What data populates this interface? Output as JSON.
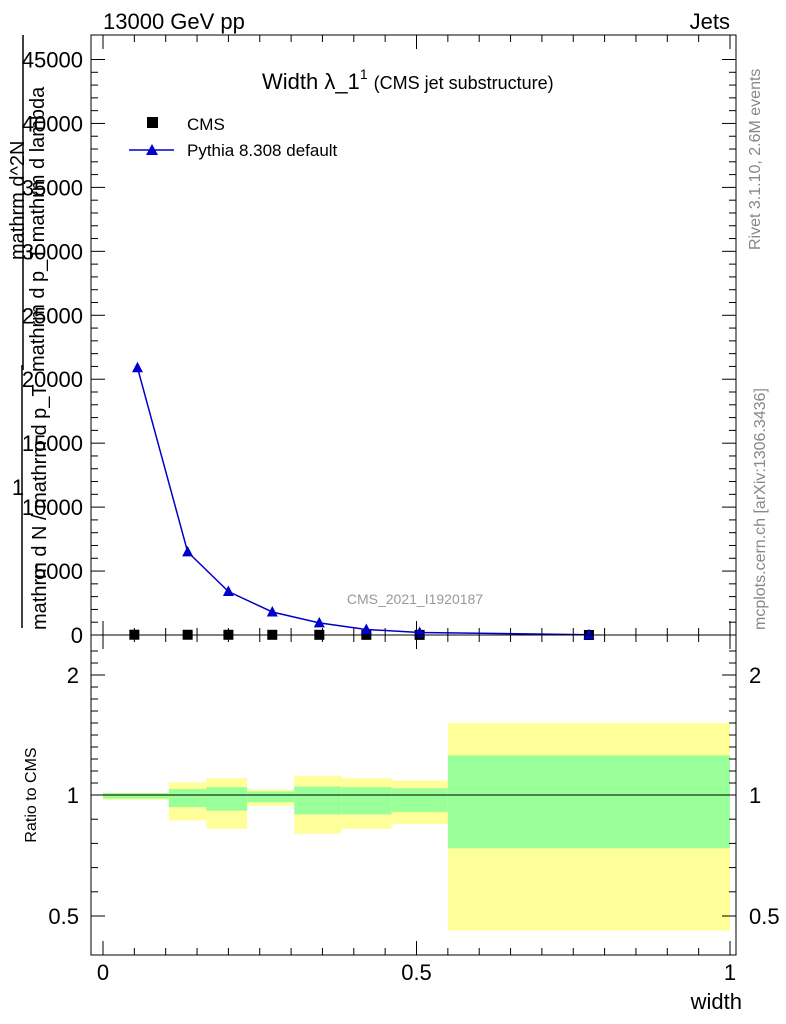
{
  "header": {
    "left": "13000 GeV pp",
    "right": "Jets"
  },
  "side_labels": {
    "rivet": "Rivet 3.1.10,  2.6M events",
    "mcplots": "mcplots.cern.ch [arXiv:1306.3436]"
  },
  "chart_data": [
    {
      "type": "line",
      "title_main": "Width λ_1",
      "title_sup": "1",
      "title_sub": "(CMS jet substructure)",
      "watermark": "CMS_2021_I1920187",
      "ylabel_lines": [
        "1",
        "mathrm d N / mathrm d p_T",
        "mathrm d^2N",
        "mathrm d p_T mathrm d lambda"
      ],
      "xlim": [
        0,
        1
      ],
      "ylim": [
        0,
        45000
      ],
      "y_ticks": [
        0,
        5000,
        10000,
        15000,
        20000,
        25000,
        30000,
        35000,
        40000,
        45000
      ],
      "legend": {
        "position": "top-left",
        "entries": [
          "CMS",
          "Pythia 8.308 default"
        ]
      },
      "series": [
        {
          "name": "CMS",
          "marker": "square",
          "color": "#000000",
          "x": [
            0.05,
            0.135,
            0.2,
            0.27,
            0.345,
            0.42,
            0.505,
            0.775
          ],
          "y": [
            22,
            20,
            18,
            16,
            15,
            12,
            10,
            2
          ]
        },
        {
          "name": "Pythia 8.308 default",
          "marker": "triangle",
          "color": "#0000cc",
          "x": [
            0.055,
            0.135,
            0.2,
            0.27,
            0.345,
            0.42,
            0.505,
            0.775
          ],
          "y": [
            20900,
            6500,
            3400,
            1800,
            950,
            430,
            200,
            20
          ]
        }
      ]
    },
    {
      "type": "area",
      "ylabel": "Ratio to CMS",
      "xlabel": "width",
      "xlim": [
        0,
        1
      ],
      "ylim": [
        0.38,
        2.3
      ],
      "y_ticks": [
        0.5,
        1,
        2
      ],
      "x_ticks": [
        0,
        0.5,
        1
      ],
      "bands": [
        {
          "x0": 0.0,
          "x1": 0.105,
          "inner": [
            0.985,
            1.015
          ],
          "outer": [
            0.98,
            1.02
          ]
        },
        {
          "x0": 0.105,
          "x1": 0.165,
          "inner": [
            0.95,
            1.05
          ],
          "outer": [
            0.895,
            1.105
          ]
        },
        {
          "x0": 0.165,
          "x1": 0.23,
          "inner": [
            0.935,
            1.065
          ],
          "outer": [
            0.86,
            1.14
          ]
        },
        {
          "x0": 0.23,
          "x1": 0.305,
          "inner": [
            0.97,
            1.03
          ],
          "outer": [
            0.955,
            1.045
          ]
        },
        {
          "x0": 0.305,
          "x1": 0.38,
          "inner": [
            0.92,
            1.07
          ],
          "outer": [
            0.84,
            1.16
          ]
        },
        {
          "x0": 0.38,
          "x1": 0.46,
          "inner": [
            0.92,
            1.065
          ],
          "outer": [
            0.86,
            1.14
          ]
        },
        {
          "x0": 0.46,
          "x1": 0.55,
          "inner": [
            0.93,
            1.055
          ],
          "outer": [
            0.88,
            1.12
          ]
        },
        {
          "x0": 0.55,
          "x1": 1.0,
          "inner": [
            0.78,
            1.33
          ],
          "outer": [
            0.44,
            1.6
          ]
        }
      ],
      "band_colors": {
        "inner": "#99ff99",
        "outer": "#ffff99"
      }
    }
  ]
}
